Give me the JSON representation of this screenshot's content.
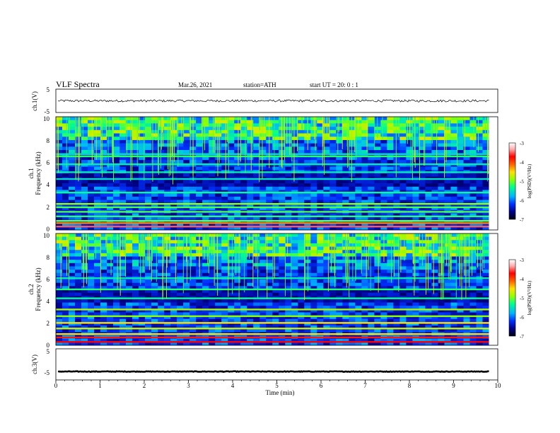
{
  "header": {
    "title": "VLF  Spectra",
    "date": "Mar.26,  2021",
    "station": "station=ATH",
    "start_ut": "start  UT  =    20: 0   : 1"
  },
  "chart_data": [
    {
      "type": "line",
      "panel": "ch.1 waveform",
      "ylabel": "ch.1(V)",
      "ylim": [
        -5,
        5
      ],
      "y_tick_labels": [
        "5",
        "-5"
      ],
      "xlim": [
        0,
        10
      ],
      "x_extent_min": 9.8,
      "level": 0,
      "noise_amplitude": 0.5,
      "trace_color": "#000000"
    },
    {
      "type": "heatmap",
      "panel": "ch.1 spectrogram",
      "ylabel_line1": "ch.1",
      "ylabel_line2": "Frequency  (kHz)",
      "ylim": [
        0,
        10
      ],
      "y_tick_labels": [
        "0",
        "2",
        "4",
        "6",
        "8",
        "10"
      ],
      "xlim": [
        0,
        10
      ],
      "x_extent_min": 9.8,
      "colorbar": {
        "label": "log(PSD)(V²/Hz)",
        "ticks": [
          "-3",
          "-4",
          "-5",
          "-6",
          "-7"
        ],
        "range": [
          -7,
          -3
        ]
      },
      "colormap": [
        "#000010",
        "#00008a",
        "#0030ff",
        "#00b4ff",
        "#00ff90",
        "#90ff00",
        "#ffe000",
        "#ff6000",
        "#ff0000",
        "#ffb0b0",
        "#ffffff"
      ],
      "bands_khz": [
        {
          "f": 0.3,
          "v": -3.6
        },
        {
          "f": 0.6,
          "v": -4.3
        },
        {
          "f": 0.8,
          "v": -5.1
        },
        {
          "f": 1.2,
          "v": -5.3
        },
        {
          "f": 1.6,
          "v": -5.2
        },
        {
          "f": 2.0,
          "v": -5.2
        },
        {
          "f": 2.3,
          "v": -5.0
        },
        {
          "f": 3.3,
          "v": -5.4
        },
        {
          "f": 4.5,
          "v": -5.6
        },
        {
          "f": 5.1,
          "v": -5.5
        },
        {
          "f": 5.8,
          "v": -5.5
        },
        {
          "f": 6.5,
          "v": -5.3
        },
        {
          "f": 6.7,
          "v": -5.6
        }
      ]
    },
    {
      "type": "heatmap",
      "panel": "ch.2 spectrogram",
      "ylabel_line1": "ch.2",
      "ylabel_line2": "Frequency  (kHz)",
      "ylim": [
        0,
        10
      ],
      "y_tick_labels": [
        "0",
        "2",
        "4",
        "6",
        "8",
        "10"
      ],
      "xlim": [
        0,
        10
      ],
      "x_extent_min": 9.8,
      "colorbar": {
        "label": "log(PSD)(V²/Hz)",
        "ticks": [
          "-3",
          "-4",
          "-5",
          "-6",
          "-7"
        ],
        "range": [
          -7,
          -3
        ]
      },
      "bands_khz": [
        {
          "f": 0.3,
          "v": -3.8
        },
        {
          "f": 0.7,
          "v": -3.9
        },
        {
          "f": 1.0,
          "v": -4.6
        },
        {
          "f": 1.5,
          "v": -4.8
        },
        {
          "f": 2.0,
          "v": -4.6
        },
        {
          "f": 2.6,
          "v": -5.0
        },
        {
          "f": 3.2,
          "v": -4.9
        },
        {
          "f": 4.2,
          "v": -5.4
        },
        {
          "f": 5.0,
          "v": -5.3
        },
        {
          "f": 6.0,
          "v": -5.5
        }
      ]
    },
    {
      "type": "line",
      "panel": "ch.3 waveform",
      "ylabel": "ch.3(V)",
      "ylim": [
        -5,
        5
      ],
      "y_tick_labels": [
        "5",
        "-5"
      ],
      "xlim": [
        0,
        10
      ],
      "x_extent_min": 9.8,
      "level": -2.3,
      "noise_amplitude": 0.1,
      "trace_color": "#000000"
    }
  ],
  "x_axis": {
    "label": "Time  (min)",
    "tick_labels": [
      "0",
      "1",
      "2",
      "3",
      "4",
      "5",
      "6",
      "7",
      "8",
      "9",
      "10"
    ]
  }
}
